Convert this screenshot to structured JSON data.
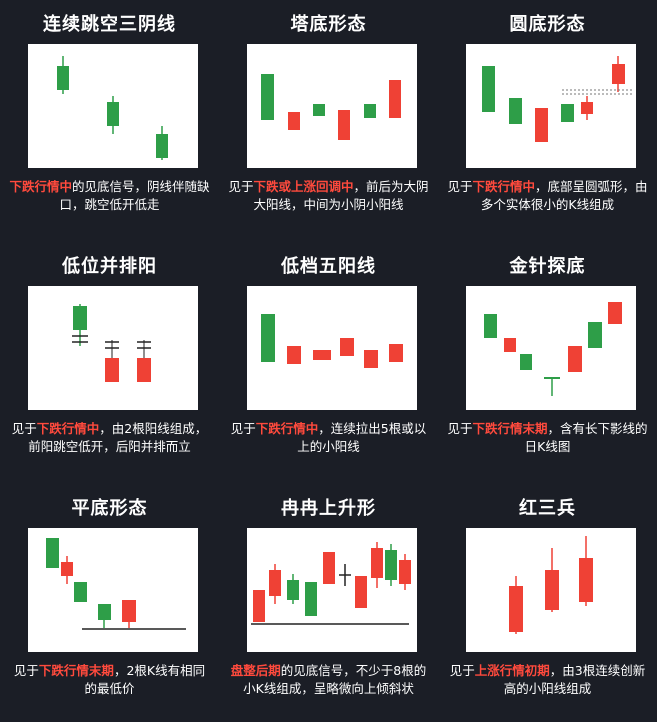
{
  "colors": {
    "up": "#ef4135",
    "down": "#2e9e48",
    "background": "#1b1e26",
    "highlight": "#ff4a3d"
  },
  "patterns": [
    {
      "title": "连续跳空三阴线",
      "desc": [
        {
          "t": "下跌行情中",
          "h": true
        },
        {
          "t": "的见底信号，阴线伴随缺口，跳空低开低走",
          "h": false
        }
      ]
    },
    {
      "title": "塔底形态",
      "desc": [
        {
          "t": "见于",
          "h": false
        },
        {
          "t": "下跌或上涨回调中",
          "h": true
        },
        {
          "t": "，前后为大阴大阳线，中间为小阴小阳线",
          "h": false
        }
      ]
    },
    {
      "title": "圆底形态",
      "desc": [
        {
          "t": "见于",
          "h": false
        },
        {
          "t": "下跌行情中",
          "h": true
        },
        {
          "t": "，底部呈圆弧形，由多个实体很小的K线组成",
          "h": false
        }
      ]
    },
    {
      "title": "低位并排阳",
      "desc": [
        {
          "t": "见于",
          "h": false
        },
        {
          "t": "下跌行情中",
          "h": true
        },
        {
          "t": "，由2根阳线组成，前阳跳空低开，后阳并排而立",
          "h": false
        }
      ]
    },
    {
      "title": "低档五阳线",
      "desc": [
        {
          "t": "见于",
          "h": false
        },
        {
          "t": "下跌行情中",
          "h": true
        },
        {
          "t": "，连续拉出5根或以上的小阳线",
          "h": false
        }
      ]
    },
    {
      "title": "金针探底",
      "desc": [
        {
          "t": "见于",
          "h": false
        },
        {
          "t": "下跌行情末期",
          "h": true
        },
        {
          "t": "，含有长下影线的日K线图",
          "h": false
        }
      ]
    },
    {
      "title": "平底形态",
      "desc": [
        {
          "t": "见于",
          "h": false
        },
        {
          "t": "下跌行情末期",
          "h": true
        },
        {
          "t": "，2根K线有相同的最低价",
          "h": false
        }
      ]
    },
    {
      "title": "冉冉上升形",
      "desc": [
        {
          "t": "盘整后期",
          "h": true
        },
        {
          "t": "的见底信号，不少于8根的小K线组成，呈略微向上倾斜状",
          "h": false
        }
      ]
    },
    {
      "title": "红三兵",
      "desc": [
        {
          "t": "见于",
          "h": false
        },
        {
          "t": "上涨行情初期",
          "h": true
        },
        {
          "t": "，由3根连续创新高的小阳线组成",
          "h": false
        }
      ]
    }
  ]
}
